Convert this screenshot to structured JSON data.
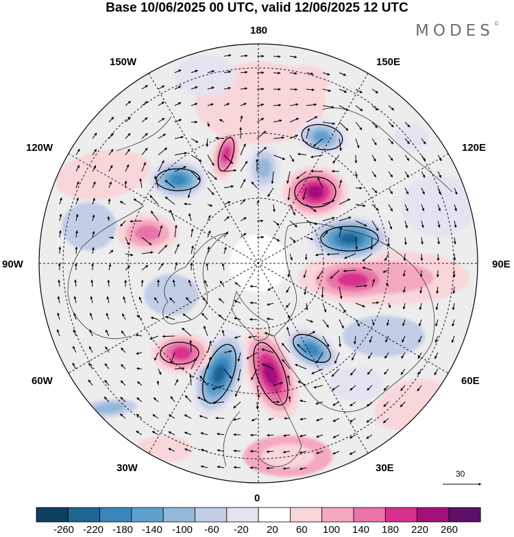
{
  "title": "Base 10/06/2025 00 UTC, valid 12/06/2025 12 UTC",
  "logo": "MODES",
  "logo_mark": "©",
  "longitude_labels": [
    {
      "id": "lon-180",
      "text": "180"
    },
    {
      "id": "lon-150e",
      "text": "150E"
    },
    {
      "id": "lon-120e",
      "text": "120E"
    },
    {
      "id": "lon-90e",
      "text": "90E"
    },
    {
      "id": "lon-60e",
      "text": "60E"
    },
    {
      "id": "lon-30e",
      "text": "30E"
    },
    {
      "id": "lon-0",
      "text": "0"
    },
    {
      "id": "lon-30w",
      "text": "30W"
    },
    {
      "id": "lon-60w",
      "text": "60W"
    },
    {
      "id": "lon-90w",
      "text": "90W"
    },
    {
      "id": "lon-120w",
      "text": "120W"
    },
    {
      "id": "lon-150w",
      "text": "150W"
    }
  ],
  "reference_vector": "30",
  "colorbar": {
    "ticks": [
      "-260",
      "-220",
      "-180",
      "-140",
      "-100",
      "-60",
      "-20",
      "20",
      "60",
      "100",
      "140",
      "180",
      "220",
      "260"
    ],
    "colors": [
      "#0f3f5e",
      "#1e6592",
      "#3a86bb",
      "#5fa0cd",
      "#93b8da",
      "#c2cde6",
      "#e6e3f1",
      "#ffffff",
      "#f9d6da",
      "#f4a9bf",
      "#ea73a9",
      "#d6308d",
      "#a4107a",
      "#5c1069"
    ]
  },
  "anomaly_centers": [
    {
      "name": "negative-anomaly-east-siberia",
      "sign": "negative",
      "magnitude": "-220"
    },
    {
      "name": "positive-anomaly-central-siberia",
      "sign": "positive",
      "magnitude": "220"
    },
    {
      "name": "negative-anomaly-kazakhstan",
      "sign": "negative",
      "magnitude": "-180"
    },
    {
      "name": "positive-anomaly-central-asia",
      "sign": "positive",
      "magnitude": "180"
    },
    {
      "name": "negative-anomaly-western-russia",
      "sign": "negative",
      "magnitude": "-180"
    },
    {
      "name": "positive-anomaly-scandinavia",
      "sign": "positive",
      "magnitude": "220"
    },
    {
      "name": "negative-anomaly-north-atlantic",
      "sign": "negative",
      "magnitude": "-220"
    },
    {
      "name": "positive-anomaly-west-atlantic",
      "sign": "positive",
      "magnitude": "180"
    },
    {
      "name": "positive-anomaly-canada",
      "sign": "positive",
      "magnitude": "140"
    },
    {
      "name": "negative-anomaly-alaska",
      "sign": "negative",
      "magnitude": "-180"
    },
    {
      "name": "positive-anomaly-bering",
      "sign": "positive",
      "magnitude": "140"
    },
    {
      "name": "negative-anomaly-chukotka",
      "sign": "negative",
      "magnitude": "-140"
    }
  ]
}
